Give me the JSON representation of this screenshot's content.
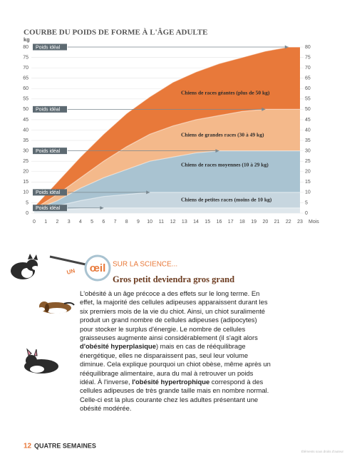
{
  "chart_data": {
    "type": "area",
    "title": "COURBE DU POIDS DE FORME À L'ÂGE ADULTE",
    "y_label": "kg",
    "x_label": "Mois",
    "x": [
      0,
      2,
      4,
      6,
      8,
      10,
      12,
      14,
      16,
      18,
      20,
      22,
      23
    ],
    "series": [
      {
        "name": "Chiens de races géantes (plus de 50 kg)",
        "color": "#e8793a",
        "values": [
          3,
          15,
          27,
          38,
          48,
          56,
          63,
          68,
          72,
          75,
          78,
          80,
          80
        ]
      },
      {
        "name": "Chiens de grandes races (30 à 49 kg)",
        "color": "#f4b98b",
        "values": [
          2,
          9,
          17,
          25,
          32,
          38,
          42,
          45,
          47,
          49,
          50,
          50,
          50
        ]
      },
      {
        "name": "Chiens de races moyennes (10 à 29 kg)",
        "color": "#a9c3d1",
        "values": [
          1.5,
          6,
          12,
          17,
          21,
          25,
          27,
          29,
          30,
          30,
          30,
          30,
          30
        ]
      },
      {
        "name": "Chiens de petites races (moins de 10 kg)",
        "color": "#c7d6df",
        "values": [
          1,
          3.5,
          6,
          8,
          9,
          10,
          10,
          10,
          10,
          10,
          10,
          10,
          10
        ]
      },
      {
        "color": "#dfe7ec",
        "values": [
          0.5,
          1.5,
          2.2,
          2.5,
          2.5,
          2.5,
          2.5,
          2.5,
          2.5,
          2.5,
          2.5,
          2.5,
          2.5
        ]
      }
    ],
    "ideal_label": "Poids idéal",
    "xlim": [
      0,
      23
    ],
    "xticks": [
      0,
      1,
      2,
      3,
      4,
      5,
      6,
      7,
      8,
      9,
      10,
      11,
      12,
      13,
      14,
      15,
      16,
      17,
      18,
      19,
      20,
      21,
      22,
      23
    ],
    "ylim": [
      0,
      80
    ],
    "yticks": [
      0,
      5,
      10,
      15,
      20,
      25,
      30,
      35,
      40,
      45,
      50,
      55,
      60,
      65,
      70,
      75,
      80
    ],
    "y2lim": [
      0,
      80
    ],
    "y2ticks": [
      0,
      5,
      10,
      15,
      20,
      25,
      30,
      35,
      40,
      45,
      50,
      55,
      60,
      65,
      70,
      75,
      80
    ],
    "grid": true
  },
  "section": {
    "kicker_un": "UN",
    "kicker_eye": "œil",
    "kicker_rest": "SUR LA SCIENCE...",
    "title": "Gros petit deviendra gros grand",
    "paragraph": [
      {
        "text": "L'obésité à un âge précoce a des effets sur le long terme. En effet, la majorité des cellules adipeuses apparaissent durant les six premiers mois de la vie du chiot. Ainsi, un chiot suralimenté produit un grand nombre de cellules adipeuses (adipocytes) pour stocker le surplus d'énergie. Le nombre de cellules graisseuses augmente ainsi considérablement (il s'agit alors "
      },
      {
        "bold": "d'obésité hyperplasique"
      },
      {
        "text": ") mais en cas de rééquilibrage énergétique, elles ne disparaissent pas, seul leur volume diminue. Cela explique pourquoi un chiot obèse, même après un rééquilibrage alimentaire, aura du mal à retrouver un poids idéal. À l'inverse, "
      },
      {
        "bold": "l'obésité hypertrophique"
      },
      {
        "text": " correspond à des cellules adipeuses de très grande taille mais en nombre normal. Celle-ci est la plus courante chez les adultes présentant une obésité modérée."
      }
    ]
  },
  "footer": {
    "page": "12",
    "title": "QUATRE SEMAINES",
    "rights": "Éléments sous droits d'auteur"
  }
}
